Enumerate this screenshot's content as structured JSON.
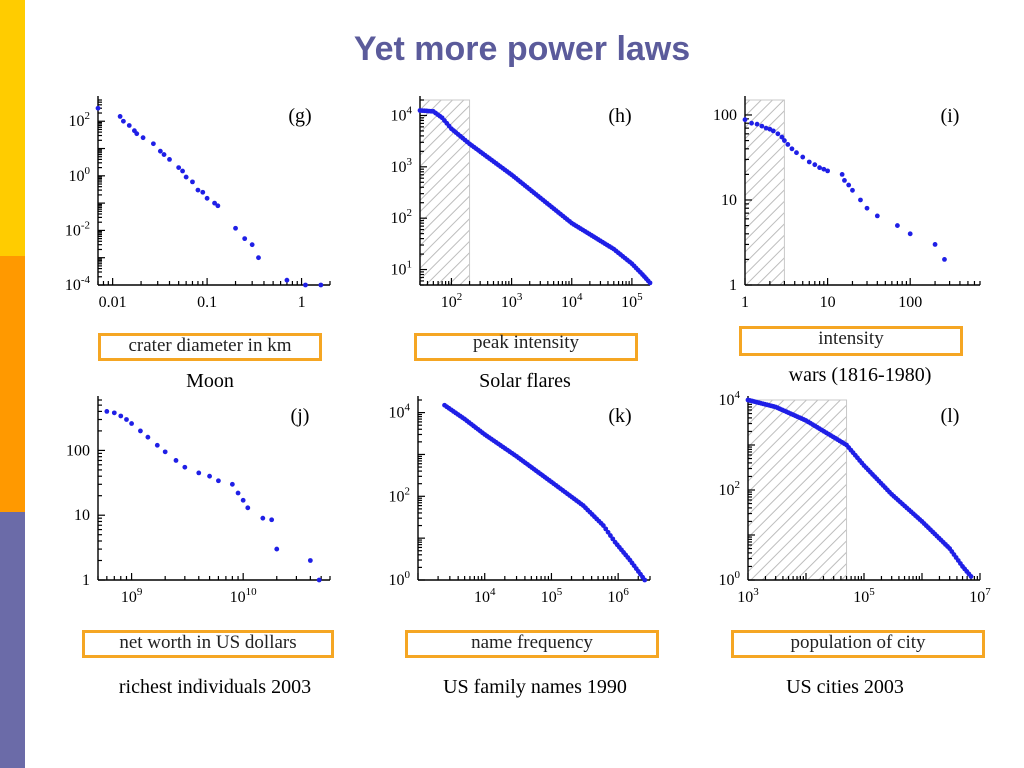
{
  "slide": {
    "title": "Yet more power laws",
    "colors": {
      "title": "#5b5b9b",
      "accent_orange": "#f5a623",
      "point": "#1f1fe6",
      "strip_yellow": "#ffcc00",
      "strip_orange": "#ff9900",
      "strip_purple": "#6b6ba8"
    }
  },
  "chart_data": [
    {
      "id": "g",
      "type": "scatter",
      "panel_label": "(g)",
      "xlabel": "crater diameter in km",
      "caption": "Moon",
      "xscale": "log",
      "yscale": "log",
      "xlim": [
        0.007,
        2
      ],
      "ylim": [
        0.0001,
        600
      ],
      "xticks": [
        {
          "v": 0.01,
          "label": "0.01"
        },
        {
          "v": 0.1,
          "label": "0.1"
        },
        {
          "v": 1,
          "label": "1"
        }
      ],
      "yticks": [
        {
          "v": 0.0001,
          "b": "10",
          "e": "-4"
        },
        {
          "v": 0.01,
          "b": "10",
          "e": "-2"
        },
        {
          "v": 1,
          "b": "10",
          "e": "0"
        },
        {
          "v": 100,
          "b": "10",
          "e": "2"
        }
      ],
      "hatch": null,
      "points": [
        [
          0.007,
          300
        ],
        [
          0.012,
          150
        ],
        [
          0.013,
          100
        ],
        [
          0.015,
          70
        ],
        [
          0.017,
          45
        ],
        [
          0.018,
          35
        ],
        [
          0.021,
          25
        ],
        [
          0.027,
          15
        ],
        [
          0.032,
          8
        ],
        [
          0.035,
          6
        ],
        [
          0.04,
          4
        ],
        [
          0.05,
          2
        ],
        [
          0.055,
          1.5
        ],
        [
          0.06,
          0.9
        ],
        [
          0.07,
          0.6
        ],
        [
          0.08,
          0.3
        ],
        [
          0.09,
          0.25
        ],
        [
          0.1,
          0.15
        ],
        [
          0.12,
          0.1
        ],
        [
          0.13,
          0.08
        ],
        [
          0.2,
          0.012
        ],
        [
          0.25,
          0.005
        ],
        [
          0.3,
          0.003
        ],
        [
          0.35,
          0.001
        ],
        [
          0.7,
          0.00015
        ],
        [
          1.1,
          0.0001
        ],
        [
          1.6,
          0.0001
        ]
      ]
    },
    {
      "id": "h",
      "type": "scatter",
      "panel_label": "(h)",
      "xlabel": "peak intensity",
      "caption": "Solar flares",
      "xscale": "log",
      "yscale": "log",
      "xlim": [
        30,
        200000
      ],
      "ylim": [
        5,
        20000
      ],
      "xticks": [
        {
          "v": 100,
          "b": "10",
          "e": "2"
        },
        {
          "v": 1000,
          "b": "10",
          "e": "3"
        },
        {
          "v": 10000,
          "b": "10",
          "e": "4"
        },
        {
          "v": 100000,
          "b": "10",
          "e": "5"
        }
      ],
      "yticks": [
        {
          "v": 10,
          "b": "10",
          "e": "1"
        },
        {
          "v": 100,
          "b": "10",
          "e": "2"
        },
        {
          "v": 1000,
          "b": "10",
          "e": "3"
        },
        {
          "v": 10000,
          "b": "10",
          "e": "4"
        }
      ],
      "hatch": [
        30,
        200
      ],
      "curve": [
        [
          30,
          12500
        ],
        [
          50,
          12000
        ],
        [
          70,
          9000
        ],
        [
          100,
          5500
        ],
        [
          200,
          2800
        ],
        [
          1000,
          700
        ],
        [
          10000,
          80
        ],
        [
          50000,
          25
        ],
        [
          100000,
          13
        ],
        [
          150000,
          8
        ],
        [
          200000,
          5.5
        ]
      ]
    },
    {
      "id": "i",
      "type": "scatter",
      "panel_label": "(i)",
      "xlabel": "intensity",
      "caption": "wars (1816-1980)",
      "xscale": "log",
      "yscale": "log",
      "xlim": [
        1,
        700
      ],
      "ylim": [
        1,
        150
      ],
      "xticks": [
        {
          "v": 1,
          "label": "1"
        },
        {
          "v": 10,
          "label": "10"
        },
        {
          "v": 100,
          "label": "100"
        }
      ],
      "yticks": [
        {
          "v": 1,
          "label": "1"
        },
        {
          "v": 10,
          "label": "10"
        },
        {
          "v": 100,
          "label": "100"
        }
      ],
      "hatch": [
        1,
        3
      ],
      "points": [
        [
          1,
          88
        ],
        [
          1.2,
          80
        ],
        [
          1.4,
          78
        ],
        [
          1.6,
          74
        ],
        [
          1.8,
          70
        ],
        [
          2,
          68
        ],
        [
          2.2,
          65
        ],
        [
          2.5,
          60
        ],
        [
          2.8,
          55
        ],
        [
          3,
          50
        ],
        [
          3.3,
          45
        ],
        [
          3.7,
          40
        ],
        [
          4.2,
          36
        ],
        [
          5,
          32
        ],
        [
          6,
          28
        ],
        [
          7,
          26
        ],
        [
          8,
          24
        ],
        [
          9,
          23
        ],
        [
          10,
          22
        ],
        [
          15,
          20
        ],
        [
          16,
          17
        ],
        [
          18,
          15
        ],
        [
          20,
          13
        ],
        [
          25,
          10
        ],
        [
          30,
          8
        ],
        [
          40,
          6.5
        ],
        [
          70,
          5
        ],
        [
          100,
          4
        ],
        [
          200,
          3
        ],
        [
          260,
          2
        ]
      ]
    },
    {
      "id": "j",
      "type": "scatter",
      "panel_label": "(j)",
      "xlabel": "net worth in US dollars",
      "caption": "richest individuals 2003",
      "xscale": "log",
      "yscale": "log",
      "xlim": [
        500000000,
        60000000000
      ],
      "ylim": [
        1,
        600
      ],
      "xticks": [
        {
          "v": 1000000000,
          "b": "10",
          "e": "9"
        },
        {
          "v": 10000000000,
          "b": "10",
          "e": "10"
        }
      ],
      "yticks": [
        {
          "v": 1,
          "label": "1"
        },
        {
          "v": 10,
          "label": "10"
        },
        {
          "v": 100,
          "label": "100"
        }
      ],
      "hatch": null,
      "points": [
        [
          600000000,
          400
        ],
        [
          700000000,
          380
        ],
        [
          800000000,
          340
        ],
        [
          900000000,
          300
        ],
        [
          1000000000,
          260
        ],
        [
          1200000000,
          200
        ],
        [
          1400000000,
          160
        ],
        [
          1700000000,
          120
        ],
        [
          2000000000,
          95
        ],
        [
          2500000000,
          70
        ],
        [
          3000000000,
          55
        ],
        [
          4000000000,
          45
        ],
        [
          5000000000,
          40
        ],
        [
          6000000000,
          34
        ],
        [
          8000000000,
          30
        ],
        [
          9000000000,
          22
        ],
        [
          10000000000,
          17
        ],
        [
          11000000000,
          13
        ],
        [
          15000000000,
          9
        ],
        [
          18000000000,
          8.5
        ],
        [
          20000000000,
          3
        ],
        [
          40000000000,
          2
        ],
        [
          48000000000,
          1
        ]
      ]
    },
    {
      "id": "k",
      "type": "scatter",
      "panel_label": "(k)",
      "xlabel": "name frequency",
      "caption": "US family names 1990",
      "xscale": "log",
      "yscale": "log",
      "xlim": [
        1000,
        3000000
      ],
      "ylim": [
        1,
        20000
      ],
      "xticks": [
        {
          "v": 10000,
          "b": "10",
          "e": "4"
        },
        {
          "v": 100000,
          "b": "10",
          "e": "5"
        },
        {
          "v": 1000000,
          "b": "10",
          "e": "6"
        }
      ],
      "yticks": [
        {
          "v": 1,
          "b": "10",
          "e": "0"
        },
        {
          "v": 100,
          "b": "10",
          "e": "2"
        },
        {
          "v": 10000,
          "b": "10",
          "e": "4"
        }
      ],
      "hatch": null,
      "curve": [
        [
          2500,
          15000
        ],
        [
          5000,
          7000
        ],
        [
          10000,
          3000
        ],
        [
          30000,
          900
        ],
        [
          100000,
          220
        ],
        [
          300000,
          60
        ],
        [
          600000,
          20
        ],
        [
          900000,
          8
        ],
        [
          1500000,
          3
        ],
        [
          2500000,
          1
        ]
      ]
    },
    {
      "id": "l",
      "type": "scatter",
      "panel_label": "(l)",
      "xlabel": "population of city",
      "caption": "US cities 2003",
      "xscale": "log",
      "yscale": "log",
      "xlim": [
        1000,
        10000000
      ],
      "ylim": [
        1,
        10000
      ],
      "xticks": [
        {
          "v": 1000,
          "b": "10",
          "e": "3"
        },
        {
          "v": 100000,
          "b": "10",
          "e": "5"
        },
        {
          "v": 10000000,
          "b": "10",
          "e": "7"
        }
      ],
      "yticks": [
        {
          "v": 1,
          "b": "10",
          "e": "0"
        },
        {
          "v": 100,
          "b": "10",
          "e": "2"
        },
        {
          "v": 10000,
          "b": "10",
          "e": "4"
        }
      ],
      "hatch": [
        1000,
        50000
      ],
      "curve": [
        [
          1000,
          10000
        ],
        [
          3000,
          7000
        ],
        [
          10000,
          3500
        ],
        [
          50000,
          1000
        ],
        [
          100000,
          350
        ],
        [
          300000,
          80
        ],
        [
          1000000,
          20
        ],
        [
          3000000,
          5
        ],
        [
          5000000,
          2
        ],
        [
          7000000,
          1.2
        ]
      ]
    }
  ]
}
